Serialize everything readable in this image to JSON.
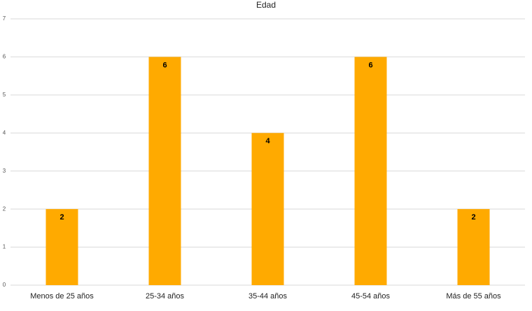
{
  "chart_data": {
    "type": "bar",
    "title": "Edad",
    "categories": [
      "Menos de 25 años",
      "25-34 años",
      "35-44 años",
      "45-54 años",
      "Más de 55 años"
    ],
    "values": [
      2,
      6,
      4,
      6,
      2
    ],
    "color": "#ffaa00",
    "ylim": [
      0,
      7
    ],
    "yticks": [
      0,
      1,
      2,
      3,
      4,
      5,
      6,
      7
    ],
    "grid": true
  }
}
